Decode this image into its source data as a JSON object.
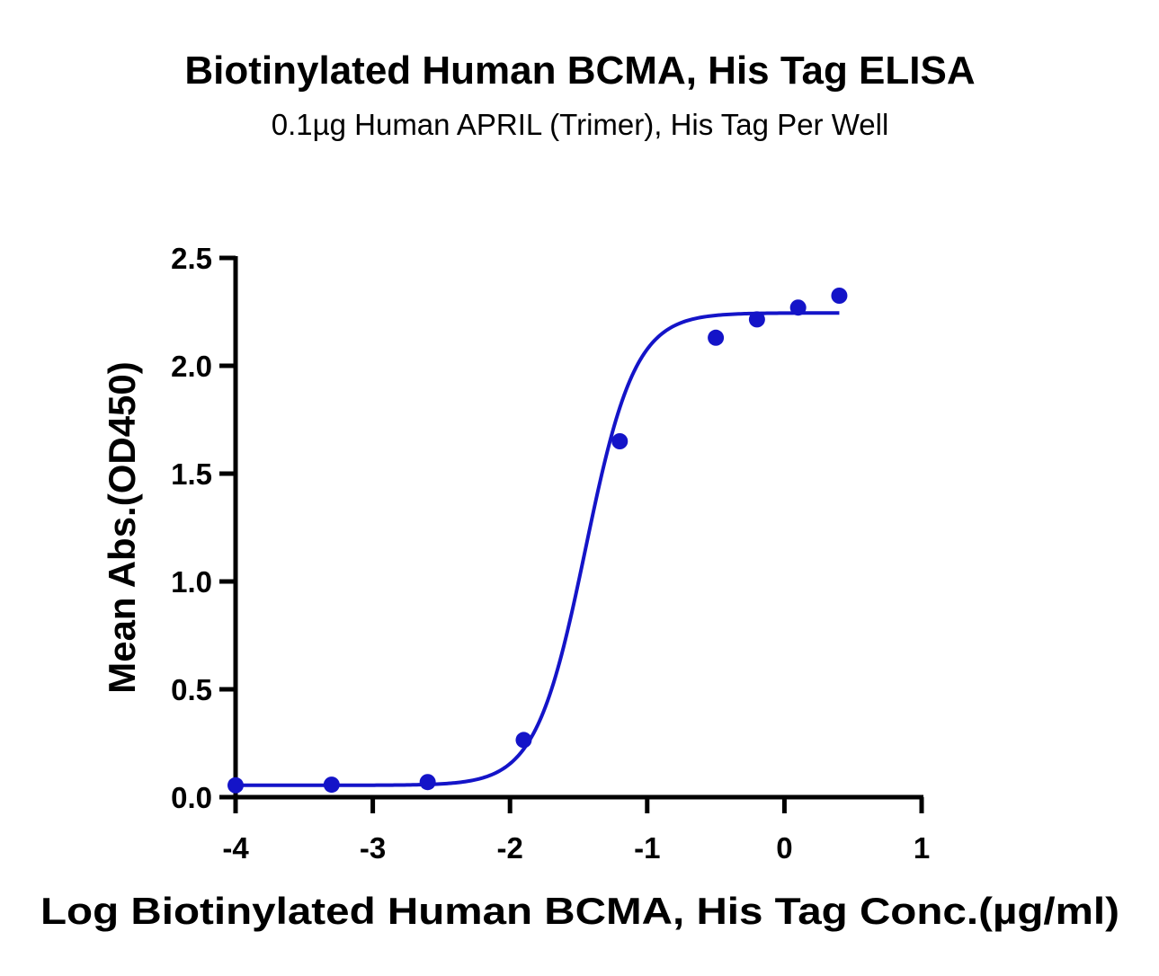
{
  "chart_data": {
    "type": "scatter",
    "title": "Biotinylated Human BCMA, His Tag ELISA",
    "subtitle": "0.1µg Human APRIL (Trimer), His Tag Per Well",
    "xlabel": "Log  Biotinylated Human BCMA, His Tag Conc.(µg/ml)",
    "ylabel": "Mean Abs.(OD450)",
    "xlim": [
      -4,
      1
    ],
    "ylim": [
      0,
      2.5
    ],
    "x_ticks": [
      "-4",
      "-3",
      "-2",
      "-1",
      "0",
      "1"
    ],
    "y_ticks": [
      "0.0",
      "0.5",
      "1.0",
      "1.5",
      "2.0",
      "2.5"
    ],
    "series": [
      {
        "x": [
          -4.0,
          -3.3,
          -2.6,
          -1.9,
          -1.2,
          -0.5,
          -0.2,
          0.1,
          0.4
        ],
        "y": [
          0.055,
          0.058,
          0.07,
          0.265,
          1.65,
          2.13,
          2.215,
          2.27,
          2.325
        ],
        "color": "#1414c8",
        "fit": {
          "model": "4PL",
          "bottom": 0.055,
          "top": 2.245,
          "logEC50": -1.45,
          "hill": 2.4
        }
      }
    ],
    "grid": false,
    "legend": "none"
  }
}
